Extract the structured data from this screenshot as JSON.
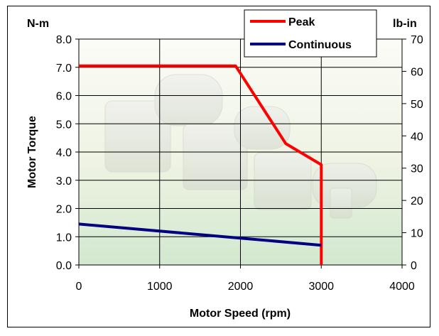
{
  "chart_data": {
    "type": "line",
    "title": "",
    "xlabel": "Motor Speed (rpm)",
    "ylabel": "Motor Torque",
    "y_unit_left": "N-m",
    "y_unit_right": "lb-in",
    "xlim": [
      0,
      4000
    ],
    "ylim": [
      0,
      8
    ],
    "y2lim": [
      0,
      70
    ],
    "x_ticks": [
      "0",
      "1000",
      "2000",
      "3000",
      "4000"
    ],
    "y_ticks": [
      "0.0",
      "1.0",
      "2.0",
      "3.0",
      "4.0",
      "5.0",
      "6.0",
      "7.0",
      "8.0"
    ],
    "y2_ticks": [
      "0",
      "10",
      "20",
      "30",
      "40",
      "50",
      "60",
      "70"
    ],
    "grid": true,
    "legend_position": "top-right",
    "series": [
      {
        "name": "Peak",
        "color": "#ff0000",
        "points": [
          [
            0,
            7.05
          ],
          [
            1940,
            7.05
          ],
          [
            2560,
            4.3
          ],
          [
            3000,
            3.55
          ],
          [
            3000,
            0
          ]
        ]
      },
      {
        "name": "Continuous",
        "color": "#000080",
        "points": [
          [
            0,
            1.45
          ],
          [
            2000,
            0.95
          ],
          [
            3000,
            0.7
          ]
        ]
      }
    ]
  }
}
